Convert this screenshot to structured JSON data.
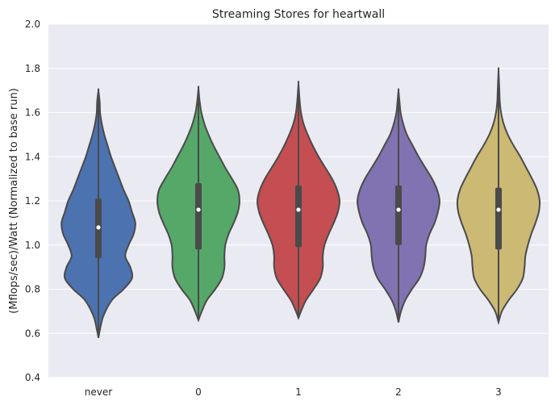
{
  "chart_data": {
    "type": "violin",
    "title": "Streaming Stores for heartwall",
    "xlabel": "",
    "ylabel": "(Mflops/sec)/Watt (Normalized to base run)",
    "ylim": [
      0.4,
      2.0
    ],
    "yticks": [
      "0.4",
      "0.6",
      "0.8",
      "1.0",
      "1.2",
      "1.4",
      "1.6",
      "1.8",
      "2.0"
    ],
    "grid": true,
    "categories": [
      "never",
      "0",
      "1",
      "2",
      "3"
    ],
    "colors": [
      "#4c72b0",
      "#55a868",
      "#c44e52",
      "#8172b2",
      "#ccb974"
    ],
    "series": [
      {
        "category": "never",
        "min": 0.58,
        "max": 1.7,
        "q1": 0.94,
        "median": 1.08,
        "q3": 1.21,
        "profile": [
          [
            0.58,
            0.0
          ],
          [
            0.62,
            0.02
          ],
          [
            0.68,
            0.06
          ],
          [
            0.75,
            0.16
          ],
          [
            0.8,
            0.3
          ],
          [
            0.85,
            0.4
          ],
          [
            0.9,
            0.38
          ],
          [
            0.95,
            0.32
          ],
          [
            1.0,
            0.36
          ],
          [
            1.05,
            0.42
          ],
          [
            1.1,
            0.44
          ],
          [
            1.15,
            0.4
          ],
          [
            1.2,
            0.36
          ],
          [
            1.25,
            0.3
          ],
          [
            1.3,
            0.25
          ],
          [
            1.35,
            0.2
          ],
          [
            1.4,
            0.15
          ],
          [
            1.45,
            0.11
          ],
          [
            1.5,
            0.07
          ],
          [
            1.55,
            0.04
          ],
          [
            1.6,
            0.02
          ],
          [
            1.65,
            0.015
          ],
          [
            1.7,
            0.0
          ]
        ]
      },
      {
        "category": "0",
        "min": 0.66,
        "max": 1.71,
        "q1": 0.98,
        "median": 1.16,
        "q3": 1.28,
        "profile": [
          [
            0.66,
            0.0
          ],
          [
            0.7,
            0.04
          ],
          [
            0.75,
            0.1
          ],
          [
            0.8,
            0.2
          ],
          [
            0.85,
            0.28
          ],
          [
            0.9,
            0.31
          ],
          [
            0.95,
            0.31
          ],
          [
            1.0,
            0.32
          ],
          [
            1.05,
            0.36
          ],
          [
            1.1,
            0.42
          ],
          [
            1.15,
            0.47
          ],
          [
            1.2,
            0.49
          ],
          [
            1.25,
            0.47
          ],
          [
            1.3,
            0.4
          ],
          [
            1.35,
            0.32
          ],
          [
            1.4,
            0.25
          ],
          [
            1.45,
            0.18
          ],
          [
            1.5,
            0.12
          ],
          [
            1.55,
            0.07
          ],
          [
            1.6,
            0.035
          ],
          [
            1.65,
            0.015
          ],
          [
            1.71,
            0.0
          ]
        ]
      },
      {
        "category": "1",
        "min": 0.67,
        "max": 1.73,
        "q1": 0.99,
        "median": 1.16,
        "q3": 1.27,
        "profile": [
          [
            0.67,
            0.0
          ],
          [
            0.7,
            0.03
          ],
          [
            0.75,
            0.09
          ],
          [
            0.8,
            0.18
          ],
          [
            0.85,
            0.26
          ],
          [
            0.9,
            0.29
          ],
          [
            0.95,
            0.29
          ],
          [
            1.0,
            0.31
          ],
          [
            1.05,
            0.36
          ],
          [
            1.1,
            0.42
          ],
          [
            1.15,
            0.47
          ],
          [
            1.2,
            0.49
          ],
          [
            1.25,
            0.46
          ],
          [
            1.3,
            0.4
          ],
          [
            1.35,
            0.32
          ],
          [
            1.4,
            0.24
          ],
          [
            1.45,
            0.17
          ],
          [
            1.5,
            0.11
          ],
          [
            1.55,
            0.06
          ],
          [
            1.6,
            0.03
          ],
          [
            1.65,
            0.015
          ],
          [
            1.73,
            0.0
          ]
        ]
      },
      {
        "category": "2",
        "min": 0.65,
        "max": 1.7,
        "q1": 1.0,
        "median": 1.16,
        "q3": 1.27,
        "profile": [
          [
            0.65,
            0.0
          ],
          [
            0.7,
            0.03
          ],
          [
            0.75,
            0.08
          ],
          [
            0.8,
            0.16
          ],
          [
            0.85,
            0.25
          ],
          [
            0.9,
            0.3
          ],
          [
            0.95,
            0.32
          ],
          [
            1.0,
            0.33
          ],
          [
            1.05,
            0.37
          ],
          [
            1.1,
            0.43
          ],
          [
            1.15,
            0.47
          ],
          [
            1.2,
            0.49
          ],
          [
            1.25,
            0.46
          ],
          [
            1.3,
            0.4
          ],
          [
            1.35,
            0.32
          ],
          [
            1.4,
            0.24
          ],
          [
            1.45,
            0.17
          ],
          [
            1.5,
            0.1
          ],
          [
            1.55,
            0.055
          ],
          [
            1.6,
            0.025
          ],
          [
            1.65,
            0.012
          ],
          [
            1.7,
            0.0
          ]
        ]
      },
      {
        "category": "3",
        "min": 0.65,
        "max": 1.79,
        "q1": 0.98,
        "median": 1.16,
        "q3": 1.26,
        "profile": [
          [
            0.65,
            0.0
          ],
          [
            0.7,
            0.04
          ],
          [
            0.75,
            0.12
          ],
          [
            0.8,
            0.22
          ],
          [
            0.85,
            0.29
          ],
          [
            0.9,
            0.31
          ],
          [
            0.95,
            0.32
          ],
          [
            1.0,
            0.35
          ],
          [
            1.05,
            0.39
          ],
          [
            1.1,
            0.44
          ],
          [
            1.15,
            0.48
          ],
          [
            1.2,
            0.49
          ],
          [
            1.25,
            0.46
          ],
          [
            1.3,
            0.4
          ],
          [
            1.35,
            0.33
          ],
          [
            1.4,
            0.26
          ],
          [
            1.45,
            0.18
          ],
          [
            1.5,
            0.11
          ],
          [
            1.55,
            0.06
          ],
          [
            1.6,
            0.03
          ],
          [
            1.65,
            0.015
          ],
          [
            1.7,
            0.01
          ],
          [
            1.79,
            0.0
          ]
        ]
      }
    ]
  }
}
